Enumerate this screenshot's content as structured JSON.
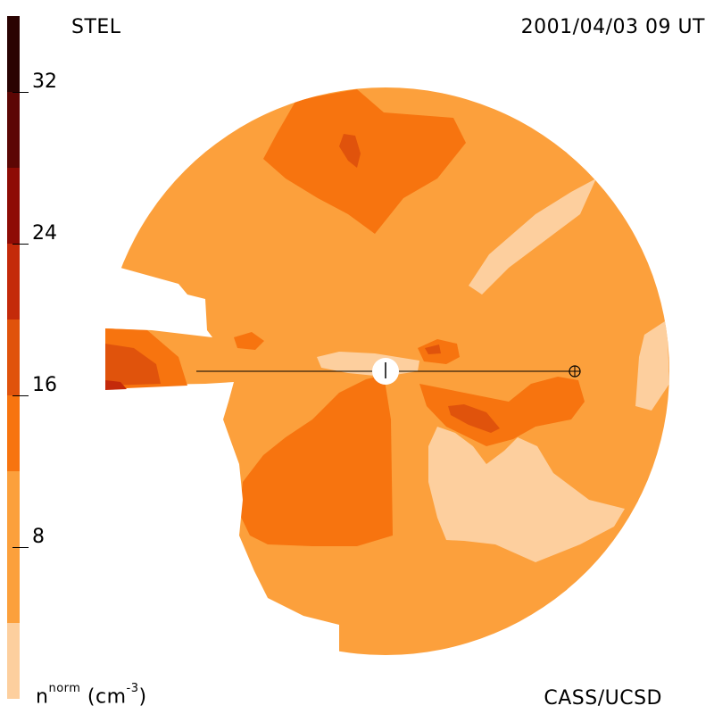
{
  "header": {
    "source": "STEL",
    "date": "2001/04/03 09 UT"
  },
  "footer": {
    "credit": "CASS/UCSD",
    "units_base": "n",
    "units_sup": "norm",
    "units_rest": " (cm",
    "units_exp": "-3",
    "units_close": ")"
  },
  "colorbar": {
    "min": 0,
    "max": 36,
    "ticks": [
      {
        "value": 8,
        "label": "8"
      },
      {
        "value": 16,
        "label": "16"
      },
      {
        "value": 24,
        "label": "24"
      },
      {
        "value": 32,
        "label": "32"
      }
    ],
    "bands": [
      {
        "from": 0,
        "to": 4,
        "color": "#fdcf9e"
      },
      {
        "from": 4,
        "to": 12,
        "color": "#fca03c"
      },
      {
        "from": 12,
        "to": 16,
        "color": "#f7740f"
      },
      {
        "from": 16,
        "to": 20,
        "color": "#e0530c"
      },
      {
        "from": 20,
        "to": 24,
        "color": "#c42a0a"
      },
      {
        "from": 24,
        "to": 28,
        "color": "#8e0b05"
      },
      {
        "from": 28,
        "to": 32,
        "color": "#5c0604"
      },
      {
        "from": 32,
        "to": 36,
        "color": "#2a0302"
      }
    ]
  }
}
